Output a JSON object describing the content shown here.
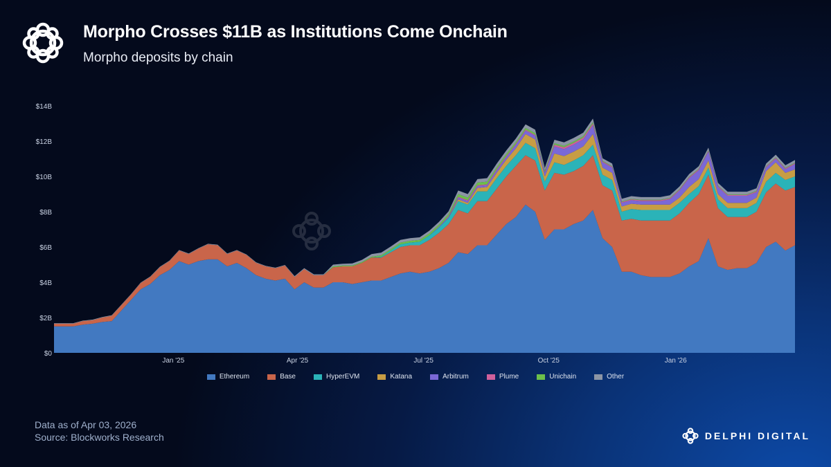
{
  "header": {
    "title": "Morpho Crosses $11B as Institutions Come Onchain",
    "subtitle": "Morpho deposits by chain"
  },
  "footer": {
    "data_as_of": "Data as of Apr 03, 2026",
    "source": "Source: Blockworks Research"
  },
  "brand": {
    "name": "DELPHI DIGITAL",
    "watermark": "DELPHI DIGITAL"
  },
  "chart_data": {
    "type": "area",
    "stacked": true,
    "title": "Morpho deposits by chain",
    "xlabel": "",
    "ylabel": "",
    "x_start": "2024-10-07",
    "x_interval": "weekly",
    "ylim": [
      0,
      14
    ],
    "y_unit": "$B",
    "y_ticks": [
      "$0",
      "$2B",
      "$4B",
      "$6B",
      "$8B",
      "$10B",
      "$12B",
      "$14B"
    ],
    "x_ticks": [
      {
        "label": "Jan '25",
        "week": 12.4
      },
      {
        "label": "Apr '25",
        "week": 25.3
      },
      {
        "label": "Jul '25",
        "week": 38.4
      },
      {
        "label": "Oct '25",
        "week": 51.4
      },
      {
        "label": "Jan '26",
        "week": 64.6
      }
    ],
    "legend_position": "bottom",
    "grid": false,
    "series": [
      {
        "name": "Ethereum",
        "color": "#4279c1",
        "values": [
          1.5,
          1.5,
          1.5,
          1.6,
          1.65,
          1.75,
          1.8,
          2.4,
          3.0,
          3.6,
          3.9,
          4.4,
          4.7,
          5.2,
          5.0,
          5.2,
          5.3,
          5.3,
          4.9,
          5.1,
          4.8,
          4.4,
          4.2,
          4.1,
          4.2,
          3.6,
          4.0,
          3.7,
          3.7,
          4.0,
          4.0,
          3.9,
          4.0,
          4.1,
          4.1,
          4.3,
          4.5,
          4.6,
          4.5,
          4.6,
          4.8,
          5.1,
          5.7,
          5.6,
          6.1,
          6.1,
          6.7,
          7.3,
          7.7,
          8.4,
          8.0,
          6.4,
          7.0,
          7.0,
          7.3,
          7.5,
          8.1,
          6.5,
          6.0,
          4.6,
          4.6,
          4.4,
          4.3,
          4.3,
          4.3,
          4.5,
          4.9,
          5.2,
          6.5,
          4.9,
          4.7,
          4.8,
          4.8,
          5.1,
          6.0,
          6.3,
          5.8,
          6.1
        ]
      },
      {
        "name": "Base",
        "color": "#c9654a",
        "values": [
          0.15,
          0.15,
          0.15,
          0.2,
          0.2,
          0.25,
          0.3,
          0.3,
          0.3,
          0.35,
          0.4,
          0.45,
          0.5,
          0.6,
          0.6,
          0.7,
          0.85,
          0.8,
          0.7,
          0.7,
          0.75,
          0.7,
          0.7,
          0.7,
          0.75,
          0.7,
          0.75,
          0.7,
          0.7,
          0.85,
          0.9,
          1.0,
          1.1,
          1.3,
          1.3,
          1.4,
          1.5,
          1.5,
          1.6,
          1.8,
          2.0,
          2.2,
          2.4,
          2.3,
          2.5,
          2.5,
          2.6,
          2.7,
          2.9,
          2.8,
          2.9,
          2.8,
          3.2,
          3.1,
          3.0,
          3.1,
          3.1,
          3.0,
          3.2,
          2.9,
          3.0,
          3.1,
          3.2,
          3.2,
          3.2,
          3.4,
          3.6,
          3.8,
          3.6,
          3.3,
          3.0,
          2.9,
          2.9,
          2.9,
          3.1,
          3.3,
          3.4,
          3.3
        ]
      },
      {
        "name": "HyperEVM",
        "color": "#2bb3b8",
        "values": [
          0,
          0,
          0,
          0,
          0,
          0,
          0,
          0,
          0,
          0,
          0,
          0,
          0,
          0,
          0,
          0,
          0,
          0,
          0,
          0,
          0,
          0,
          0,
          0,
          0,
          0,
          0,
          0,
          0,
          0,
          0,
          0,
          0,
          0,
          0.05,
          0.1,
          0.15,
          0.15,
          0.2,
          0.25,
          0.3,
          0.35,
          0.5,
          0.5,
          0.55,
          0.55,
          0.6,
          0.6,
          0.6,
          0.7,
          0.7,
          0.5,
          0.6,
          0.55,
          0.6,
          0.6,
          0.6,
          0.6,
          0.6,
          0.5,
          0.55,
          0.6,
          0.6,
          0.6,
          0.6,
          0.6,
          0.5,
          0.45,
          0.4,
          0.5,
          0.5,
          0.5,
          0.5,
          0.5,
          0.6,
          0.6,
          0.6,
          0.6
        ]
      },
      {
        "name": "Katana",
        "color": "#c79d44",
        "values": [
          0,
          0,
          0,
          0,
          0,
          0,
          0,
          0,
          0,
          0,
          0,
          0,
          0,
          0,
          0,
          0,
          0,
          0,
          0,
          0,
          0,
          0,
          0,
          0,
          0,
          0,
          0,
          0,
          0,
          0,
          0,
          0,
          0,
          0,
          0,
          0,
          0,
          0,
          0,
          0,
          0,
          0,
          0.1,
          0.1,
          0.2,
          0.25,
          0.3,
          0.35,
          0.4,
          0.5,
          0.5,
          0.3,
          0.5,
          0.5,
          0.5,
          0.5,
          0.6,
          0.4,
          0.4,
          0.3,
          0.3,
          0.3,
          0.3,
          0.3,
          0.3,
          0.3,
          0.4,
          0.4,
          0.4,
          0.3,
          0.3,
          0.3,
          0.3,
          0.3,
          0.6,
          0.6,
          0.4,
          0.4
        ]
      },
      {
        "name": "Arbitrum",
        "color": "#7a68d6",
        "values": [
          0,
          0,
          0,
          0,
          0,
          0,
          0,
          0,
          0,
          0,
          0,
          0,
          0,
          0,
          0,
          0,
          0,
          0,
          0,
          0,
          0,
          0,
          0,
          0,
          0,
          0,
          0,
          0,
          0,
          0,
          0,
          0,
          0,
          0,
          0,
          0,
          0,
          0,
          0,
          0,
          0.05,
          0.05,
          0.1,
          0.1,
          0.1,
          0.1,
          0.15,
          0.15,
          0.2,
          0.2,
          0.2,
          0.2,
          0.4,
          0.4,
          0.4,
          0.4,
          0.5,
          0.3,
          0.3,
          0.2,
          0.2,
          0.2,
          0.2,
          0.2,
          0.3,
          0.4,
          0.5,
          0.5,
          0.5,
          0.4,
          0.4,
          0.4,
          0.4,
          0.3,
          0.2,
          0.2,
          0.2,
          0.3
        ]
      },
      {
        "name": "Plume",
        "color": "#d0609b",
        "values": [
          0,
          0,
          0,
          0,
          0,
          0,
          0,
          0,
          0,
          0,
          0,
          0,
          0,
          0,
          0,
          0,
          0,
          0,
          0,
          0,
          0,
          0,
          0,
          0,
          0,
          0,
          0,
          0,
          0,
          0,
          0,
          0,
          0,
          0,
          0,
          0,
          0,
          0,
          0,
          0,
          0,
          0.05,
          0.05,
          0.05,
          0.05,
          0.05,
          0.05,
          0.05,
          0.05,
          0.05,
          0.05,
          0.05,
          0.1,
          0.1,
          0.1,
          0.1,
          0.1,
          0.05,
          0.05,
          0.05,
          0.05,
          0.05,
          0.05,
          0.05,
          0.05,
          0.05,
          0.05,
          0.05,
          0.05,
          0.05,
          0.05,
          0.05,
          0.05,
          0.05,
          0.05,
          0.05,
          0.05,
          0.05
        ]
      },
      {
        "name": "Unichain",
        "color": "#6cbf4a",
        "values": [
          0,
          0,
          0,
          0,
          0,
          0,
          0,
          0,
          0,
          0,
          0,
          0,
          0,
          0,
          0,
          0,
          0,
          0,
          0,
          0,
          0,
          0,
          0,
          0,
          0,
          0,
          0,
          0,
          0,
          0.05,
          0.05,
          0.05,
          0.05,
          0.05,
          0.08,
          0.08,
          0.1,
          0.1,
          0.1,
          0.12,
          0.12,
          0.12,
          0.15,
          0.15,
          0.15,
          0.15,
          0.12,
          0.12,
          0.1,
          0.1,
          0.1,
          0.08,
          0.08,
          0.08,
          0.08,
          0.08,
          0.08,
          0.03,
          0.03,
          0.03,
          0.03,
          0.03,
          0.03,
          0.03,
          0.03,
          0.03,
          0.03,
          0.03,
          0.03,
          0.03,
          0.03,
          0.03,
          0.03,
          0.03,
          0.03,
          0.03,
          0.03,
          0.03
        ]
      },
      {
        "name": "Other",
        "color": "#8c95a5",
        "values": [
          0.03,
          0.03,
          0.03,
          0.03,
          0.03,
          0.03,
          0.03,
          0.03,
          0.03,
          0.03,
          0.03,
          0.03,
          0.03,
          0.03,
          0.03,
          0.03,
          0.03,
          0.03,
          0.03,
          0.03,
          0.03,
          0.03,
          0.03,
          0.03,
          0.03,
          0.05,
          0.05,
          0.05,
          0.05,
          0.1,
          0.1,
          0.12,
          0.12,
          0.15,
          0.15,
          0.15,
          0.15,
          0.15,
          0.15,
          0.15,
          0.15,
          0.15,
          0.2,
          0.2,
          0.2,
          0.2,
          0.2,
          0.2,
          0.2,
          0.2,
          0.2,
          0.15,
          0.2,
          0.2,
          0.2,
          0.2,
          0.2,
          0.15,
          0.15,
          0.15,
          0.15,
          0.15,
          0.15,
          0.15,
          0.15,
          0.15,
          0.15,
          0.15,
          0.15,
          0.15,
          0.15,
          0.15,
          0.15,
          0.15,
          0.15,
          0.15,
          0.15,
          0.15
        ]
      }
    ]
  }
}
